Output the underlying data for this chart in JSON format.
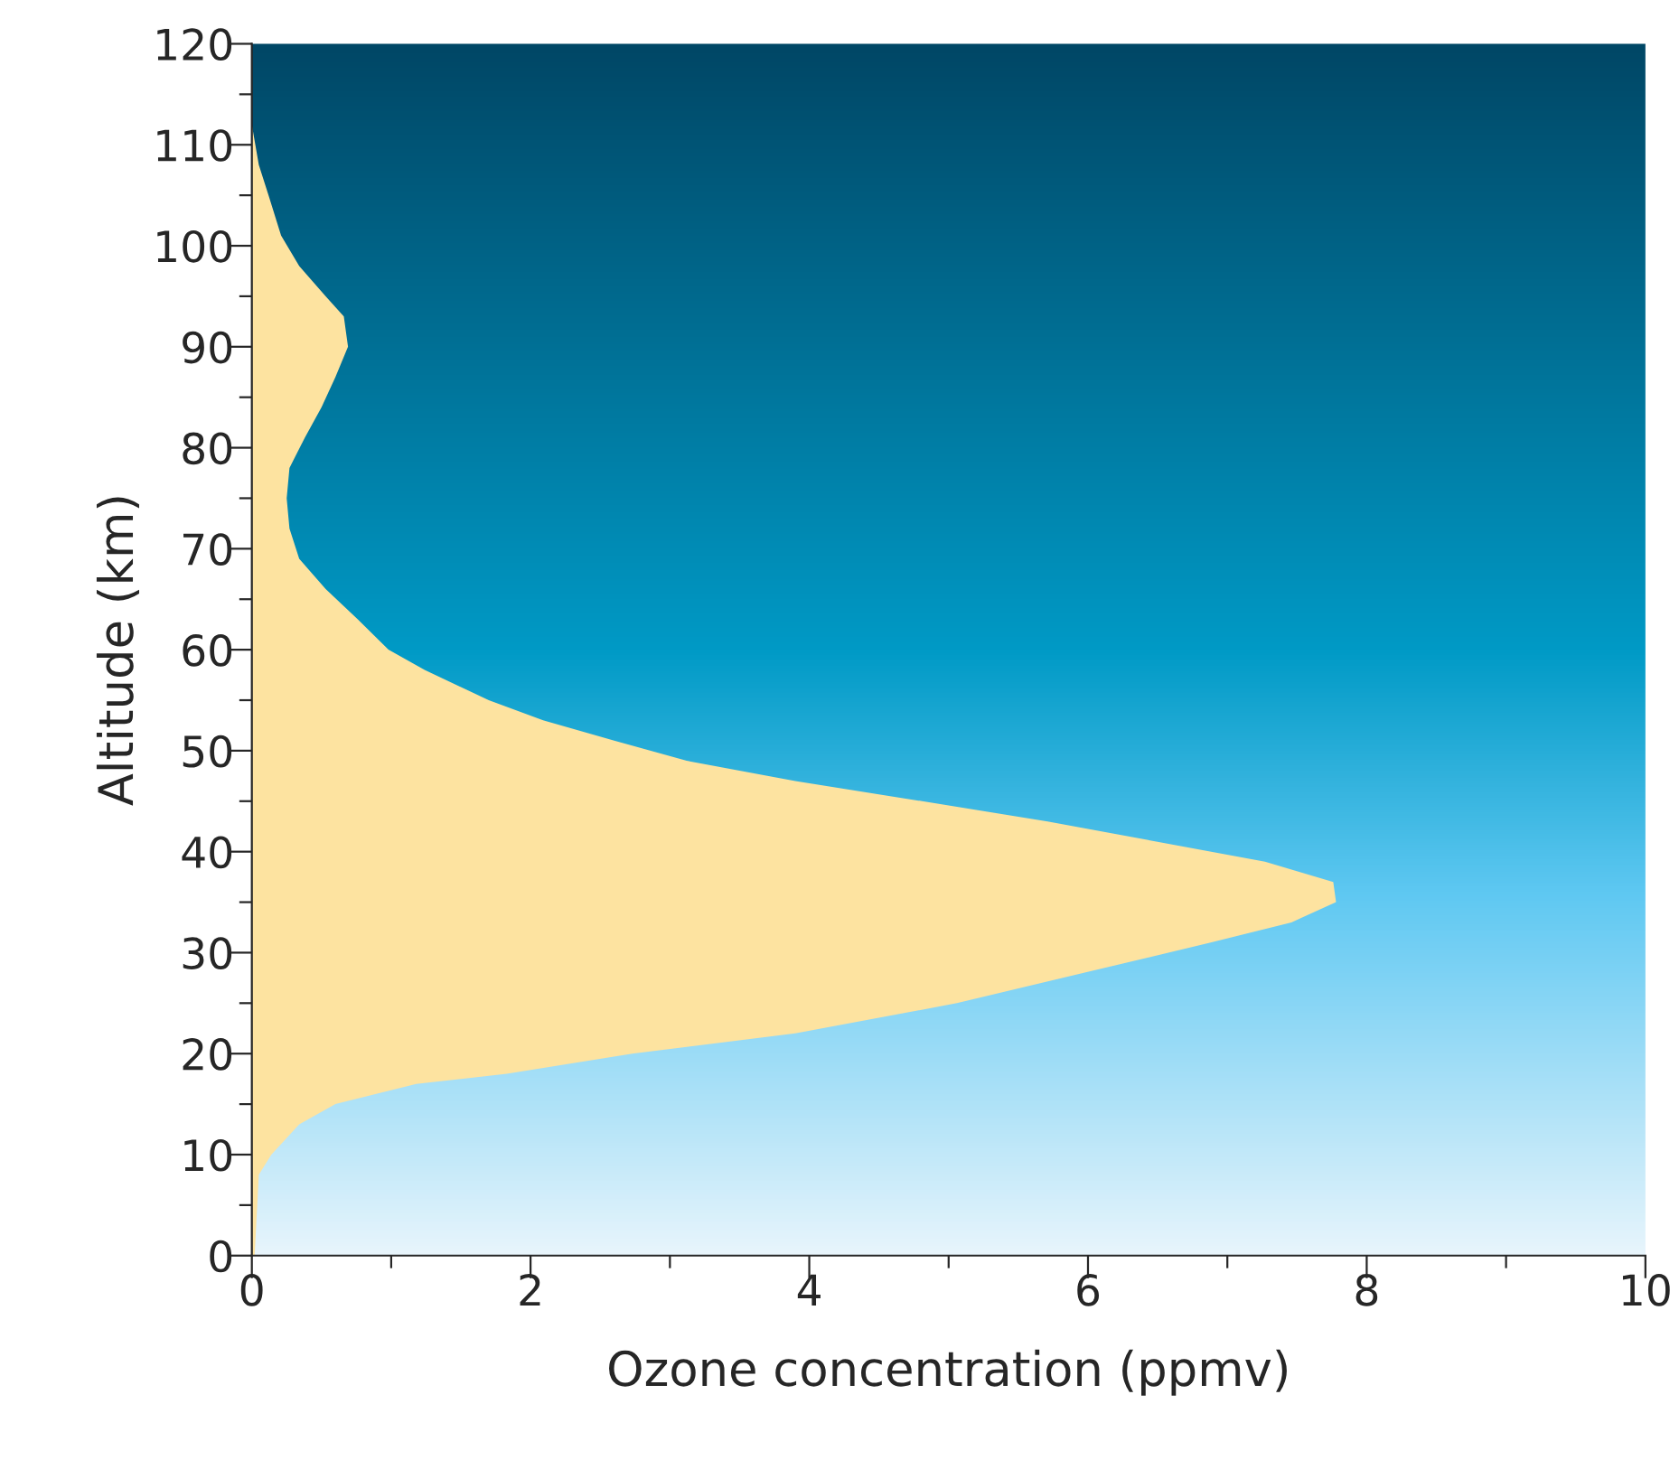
{
  "chart_data": {
    "type": "area",
    "orientation": "horizontal",
    "xlabel": "Ozone concentration (ppmv)",
    "ylabel": "Altitude (km)",
    "x": [
      0,
      8,
      10,
      13,
      15,
      17,
      18,
      20,
      22,
      25,
      28,
      31,
      33,
      35,
      37,
      39,
      41,
      43,
      45,
      47,
      49,
      51,
      53,
      55,
      58,
      60,
      63,
      66,
      69,
      72,
      75,
      78,
      81,
      84,
      87,
      90,
      93,
      95,
      98,
      101,
      105,
      108,
      112
    ],
    "series": [
      {
        "color": "#fde3a0",
        "values": [
          0.02,
          0.05,
          0.14,
          0.34,
          0.6,
          1.18,
          1.83,
          2.73,
          3.9,
          5.06,
          5.97,
          6.88,
          7.46,
          7.78,
          7.76,
          7.27,
          6.49,
          5.71,
          4.81,
          3.9,
          3.12,
          2.6,
          2.09,
          1.7,
          1.24,
          0.98,
          0.76,
          0.53,
          0.34,
          0.27,
          0.25,
          0.27,
          0.38,
          0.5,
          0.6,
          0.69,
          0.66,
          0.53,
          0.34,
          0.21,
          0.12,
          0.05,
          0
        ]
      }
    ],
    "xlim": [
      0,
      10
    ],
    "xticks": [
      0,
      {
        "value": 1,
        "label": null
      },
      2,
      {
        "value": 3,
        "label": null
      },
      4,
      {
        "value": 5,
        "label": null
      },
      6,
      {
        "value": 7,
        "label": null
      },
      8,
      {
        "value": 9,
        "label": null
      },
      10
    ],
    "ylim": [
      0,
      120
    ],
    "yticks": [
      0,
      {
        "value": 5,
        "label": null
      },
      10,
      {
        "value": 15,
        "label": null
      },
      20,
      {
        "value": 25,
        "label": null
      },
      30,
      {
        "value": 35,
        "label": null
      },
      40,
      {
        "value": 45,
        "label": null
      },
      50,
      {
        "value": 55,
        "label": null
      },
      60,
      {
        "value": 65,
        "label": null
      },
      70,
      {
        "value": 75,
        "label": null
      },
      80,
      {
        "value": 85,
        "label": null
      },
      90,
      {
        "value": 95,
        "label": null
      },
      100,
      {
        "value": 105,
        "label": null
      },
      110,
      {
        "value": 115,
        "label": null
      },
      120
    ],
    "grid": false,
    "legend": false
  }
}
